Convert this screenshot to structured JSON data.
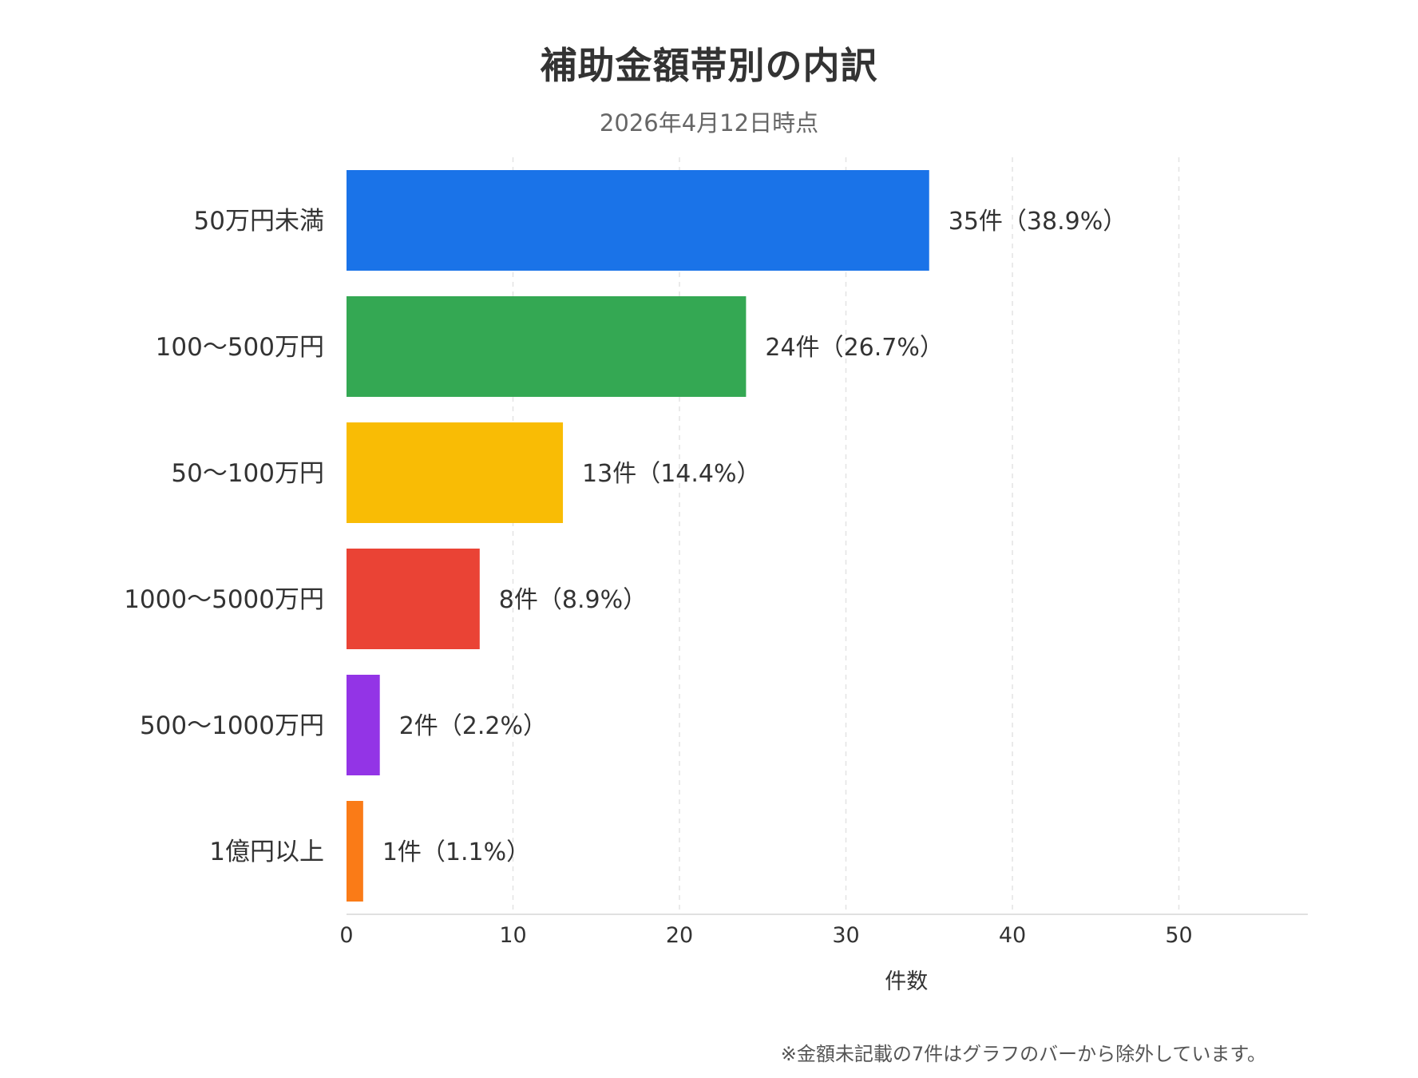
{
  "title": "補助金額帯別の内訳",
  "subtitle": "2026年4月12日時点",
  "footnote": "※金額未記載の7件はグラフのバーから除外しています。",
  "chart_data": {
    "type": "bar",
    "orientation": "horizontal",
    "title": "補助金額帯別の内訳",
    "subtitle": "2026年4月12日時点",
    "xlabel": "件数",
    "ylabel": "",
    "xlim": [
      0,
      57.5
    ],
    "xticks": [
      0,
      10,
      20,
      30,
      40,
      50
    ],
    "grid": "vertical-dashed",
    "legend": "none",
    "categories": [
      "50万円未満",
      "100〜500万円",
      "50〜100万円",
      "1000〜5000万円",
      "500〜1000万円",
      "1億円以上"
    ],
    "values": [
      35,
      24,
      13,
      8,
      2,
      1
    ],
    "data_labels": [
      "35件（38.9%）",
      "24件（26.7%）",
      "13件（14.4%）",
      "8件（8.9%）",
      "2件（2.2%）",
      "1件（1.1%）"
    ],
    "colors": [
      "#1a73e8",
      "#34a853",
      "#f9bc05",
      "#ea4335",
      "#9334e6",
      "#fa7b17"
    ]
  }
}
